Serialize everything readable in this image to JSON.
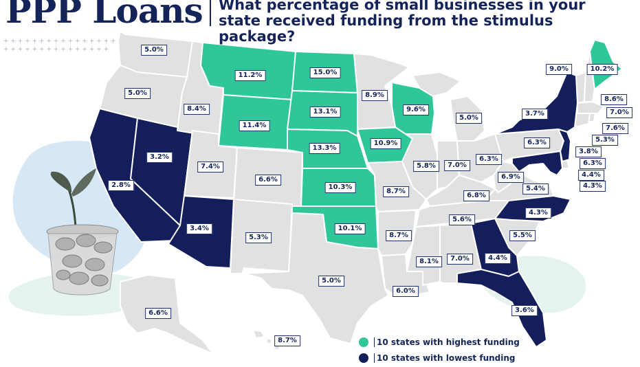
{
  "header": {
    "brand_title": "PPP Loans",
    "question": "What percentage of small businesses in your state received funding from the stimulus package?"
  },
  "colors": {
    "highest": "#2fc79a",
    "lowest": "#131e5a",
    "other": "#e1e1e1",
    "accent_blob": "#d6e8f5",
    "accent_blob_2": "#e5f3ee"
  },
  "legend": {
    "highest_label": "10 states with highest funding",
    "lowest_label": "10 states with lowest funding"
  },
  "illustration": "coin-jar-with-plant-icon",
  "map": {
    "states": [
      {
        "state": "WA",
        "value": "5.0%",
        "group": "other"
      },
      {
        "state": "OR",
        "value": "5.0%",
        "group": "other"
      },
      {
        "state": "ID",
        "value": "8.4%",
        "group": "other"
      },
      {
        "state": "MT",
        "value": "11.2%",
        "group": "highest"
      },
      {
        "state": "ND",
        "value": "15.0%",
        "group": "highest"
      },
      {
        "state": "WY",
        "value": "11.4%",
        "group": "highest"
      },
      {
        "state": "SD",
        "value": "13.1%",
        "group": "highest"
      },
      {
        "state": "MN",
        "value": "8.9%",
        "group": "other"
      },
      {
        "state": "WI",
        "value": "9.6%",
        "group": "highest"
      },
      {
        "state": "MI",
        "value": "5.0%",
        "group": "other"
      },
      {
        "state": "NE",
        "value": "13.3%",
        "group": "highest"
      },
      {
        "state": "IA",
        "value": "10.9%",
        "group": "highest"
      },
      {
        "state": "CA",
        "value": "2.8%",
        "group": "lowest"
      },
      {
        "state": "NV",
        "value": "3.2%",
        "group": "lowest"
      },
      {
        "state": "UT",
        "value": "7.4%",
        "group": "other"
      },
      {
        "state": "CO",
        "value": "6.6%",
        "group": "other"
      },
      {
        "state": "KS",
        "value": "10.3%",
        "group": "highest"
      },
      {
        "state": "AZ",
        "value": "3.4%",
        "group": "lowest"
      },
      {
        "state": "NM",
        "value": "5.3%",
        "group": "other"
      },
      {
        "state": "OK",
        "value": "10.1%",
        "group": "highest"
      },
      {
        "state": "TX",
        "value": "5.0%",
        "group": "other"
      },
      {
        "state": "MO",
        "value": "8.7%",
        "group": "other"
      },
      {
        "state": "AR",
        "value": "8.7%",
        "group": "other"
      },
      {
        "state": "LA",
        "value": "6.0%",
        "group": "other"
      },
      {
        "state": "IL",
        "value": "5.8%",
        "group": "other"
      },
      {
        "state": "IN",
        "value": "7.0%",
        "group": "other"
      },
      {
        "state": "OH",
        "value": "6.3%",
        "group": "other"
      },
      {
        "state": "KY",
        "value": "6.8%",
        "group": "other"
      },
      {
        "state": "TN",
        "value": "5.6%",
        "group": "other"
      },
      {
        "state": "MS",
        "value": "8.1%",
        "group": "other"
      },
      {
        "state": "AL",
        "value": "7.0%",
        "group": "other"
      },
      {
        "state": "GA",
        "value": "4.4%",
        "group": "lowest"
      },
      {
        "state": "FL",
        "value": "3.6%",
        "group": "lowest"
      },
      {
        "state": "SC",
        "value": "5.5%",
        "group": "other"
      },
      {
        "state": "NC",
        "value": "4.3%",
        "group": "lowest"
      },
      {
        "state": "VA",
        "value": "5.4%",
        "group": "other"
      },
      {
        "state": "WV",
        "value": "6.9%",
        "group": "other"
      },
      {
        "state": "PA",
        "value": "6.3%",
        "group": "other"
      },
      {
        "state": "NY",
        "value": "3.7%",
        "group": "lowest"
      },
      {
        "state": "VT",
        "value": "9.0%",
        "group": "other"
      },
      {
        "state": "ME",
        "value": "10.2%",
        "group": "highest"
      },
      {
        "state": "NH",
        "value": "8.6%",
        "group": "other"
      },
      {
        "state": "MA",
        "value": "7.0%",
        "group": "other"
      },
      {
        "state": "RI",
        "value": "7.6%",
        "group": "other"
      },
      {
        "state": "CT",
        "value": "5.3%",
        "group": "other"
      },
      {
        "state": "NJ",
        "value": "3.8%",
        "group": "lowest"
      },
      {
        "state": "DE",
        "value": "6.3%",
        "group": "other"
      },
      {
        "state": "MD",
        "value": "4.4%",
        "group": "lowest"
      },
      {
        "state": "DC",
        "value": "4.3%",
        "group": "other"
      },
      {
        "state": "AK",
        "value": "6.6%",
        "group": "other"
      },
      {
        "state": "HI",
        "value": "8.7%",
        "group": "other"
      }
    ]
  }
}
